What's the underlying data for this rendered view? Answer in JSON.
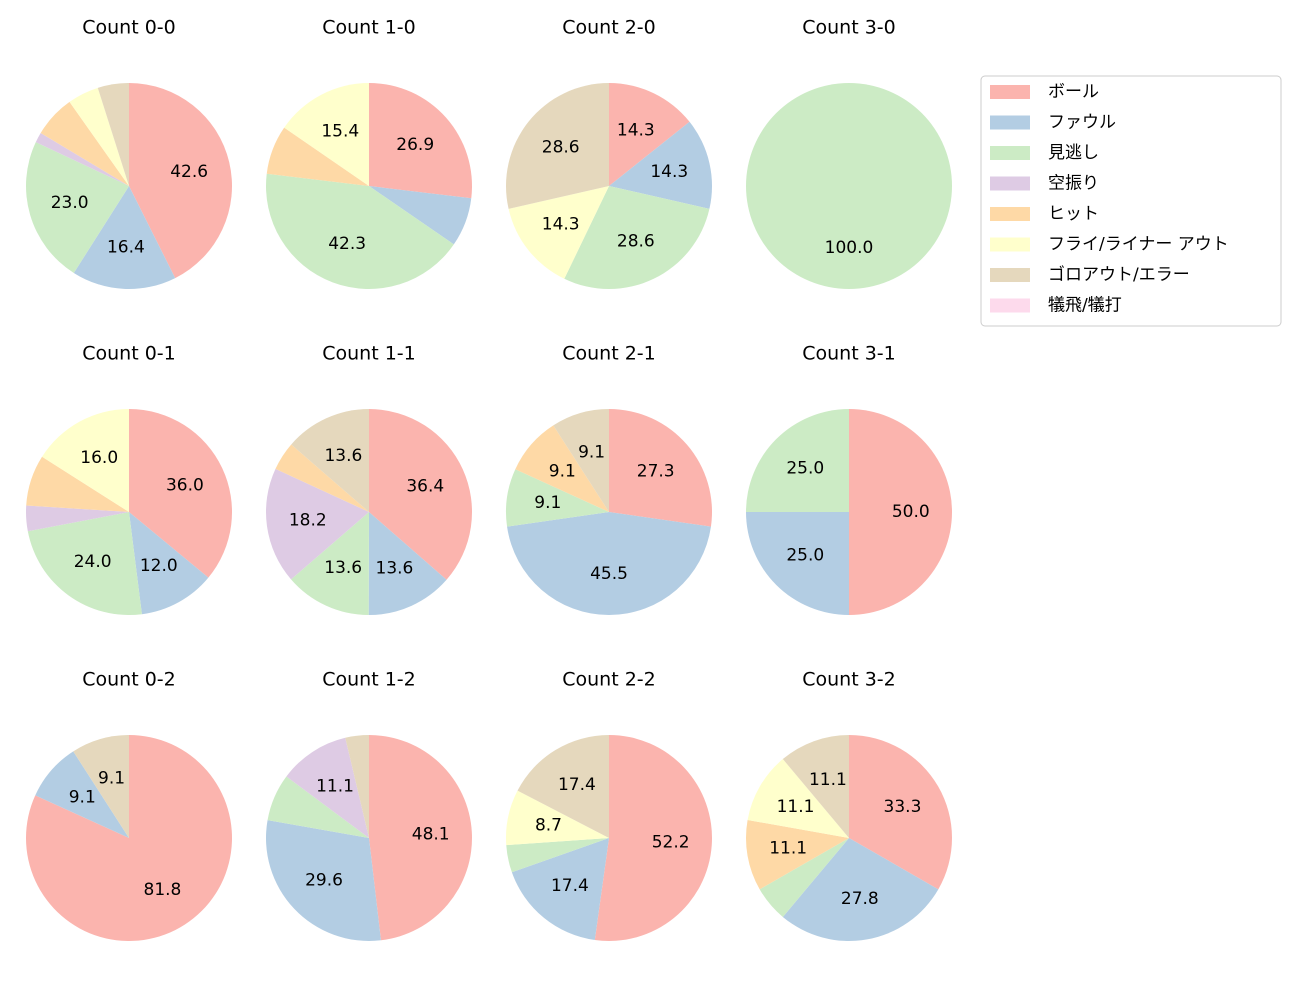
{
  "legend": {
    "labels": [
      "ボール",
      "ファウル",
      "見逃し",
      "空振り",
      "ヒット",
      "フライ/ライナー アウト",
      "ゴロアウト/エラー",
      "犠飛/犠打"
    ],
    "colors": [
      "#fbb4ae",
      "#b3cde3",
      "#ccebc5",
      "#decbe4",
      "#fed9a6",
      "#ffffcc",
      "#e5d8bd",
      "#fddaec"
    ]
  },
  "chart_data": [
    {
      "type": "pie",
      "title": "Count 0-0",
      "values": [
        42.6,
        16.4,
        23.0,
        1.6,
        6.6,
        4.9,
        4.9,
        0
      ],
      "value_labels": [
        "42.6",
        "16.4",
        "23.0",
        null,
        null,
        null,
        null,
        null
      ]
    },
    {
      "type": "pie",
      "title": "Count 1-0",
      "values": [
        26.9,
        7.7,
        42.3,
        0,
        7.7,
        15.4,
        0,
        0
      ],
      "value_labels": [
        "26.9",
        null,
        "42.3",
        null,
        null,
        "15.4",
        null,
        null
      ]
    },
    {
      "type": "pie",
      "title": "Count 2-0",
      "values": [
        14.3,
        14.3,
        28.6,
        0,
        0,
        14.3,
        28.6,
        0
      ],
      "value_labels": [
        "14.3",
        "14.3",
        "28.6",
        null,
        null,
        "14.3",
        "28.6",
        null
      ]
    },
    {
      "type": "pie",
      "title": "Count 3-0",
      "values": [
        0,
        0,
        100,
        0,
        0,
        0,
        0,
        0
      ],
      "value_labels": [
        null,
        null,
        "100.0",
        null,
        null,
        null,
        null,
        null
      ]
    },
    {
      "type": "pie",
      "title": "Count 0-1",
      "values": [
        36,
        12,
        24,
        4,
        8,
        16,
        0,
        0
      ],
      "value_labels": [
        "36.0",
        "12.0",
        "24.0",
        null,
        null,
        "16.0",
        null,
        null
      ]
    },
    {
      "type": "pie",
      "title": "Count 1-1",
      "values": [
        36.4,
        13.6,
        13.6,
        18.2,
        4.5,
        0,
        13.6,
        0
      ],
      "value_labels": [
        "36.4",
        "13.6",
        "13.6",
        "18.2",
        null,
        null,
        "13.6",
        null
      ]
    },
    {
      "type": "pie",
      "title": "Count 2-1",
      "values": [
        27.3,
        45.5,
        9.1,
        0,
        9.1,
        0,
        9.1,
        0
      ],
      "value_labels": [
        "27.3",
        "45.5",
        "9.1",
        null,
        "9.1",
        null,
        "9.1",
        null
      ]
    },
    {
      "type": "pie",
      "title": "Count 3-1",
      "values": [
        50,
        25,
        25,
        0,
        0,
        0,
        0,
        0
      ],
      "value_labels": [
        "50.0",
        "25.0",
        "25.0",
        null,
        null,
        null,
        null,
        null
      ]
    },
    {
      "type": "pie",
      "title": "Count 0-2",
      "values": [
        81.8,
        9.1,
        0,
        0,
        0,
        0,
        9.1,
        0
      ],
      "value_labels": [
        "81.8",
        "9.1",
        null,
        null,
        null,
        null,
        "9.1",
        null
      ]
    },
    {
      "type": "pie",
      "title": "Count 1-2",
      "values": [
        48.1,
        29.6,
        7.4,
        11.1,
        0,
        0,
        3.7,
        0
      ],
      "value_labels": [
        "48.1",
        "29.6",
        null,
        "11.1",
        null,
        null,
        null,
        null
      ]
    },
    {
      "type": "pie",
      "title": "Count 2-2",
      "values": [
        52.2,
        17.4,
        4.3,
        0,
        0,
        8.7,
        17.4,
        0
      ],
      "value_labels": [
        "52.2",
        "17.4",
        null,
        null,
        null,
        "8.7",
        "17.4",
        null
      ]
    },
    {
      "type": "pie",
      "title": "Count 3-2",
      "values": [
        33.3,
        27.8,
        5.6,
        0,
        11.1,
        11.1,
        11.1,
        0
      ],
      "value_labels": [
        "33.3",
        "27.8",
        null,
        null,
        "11.1",
        "11.1",
        "11.1",
        null
      ]
    }
  ]
}
